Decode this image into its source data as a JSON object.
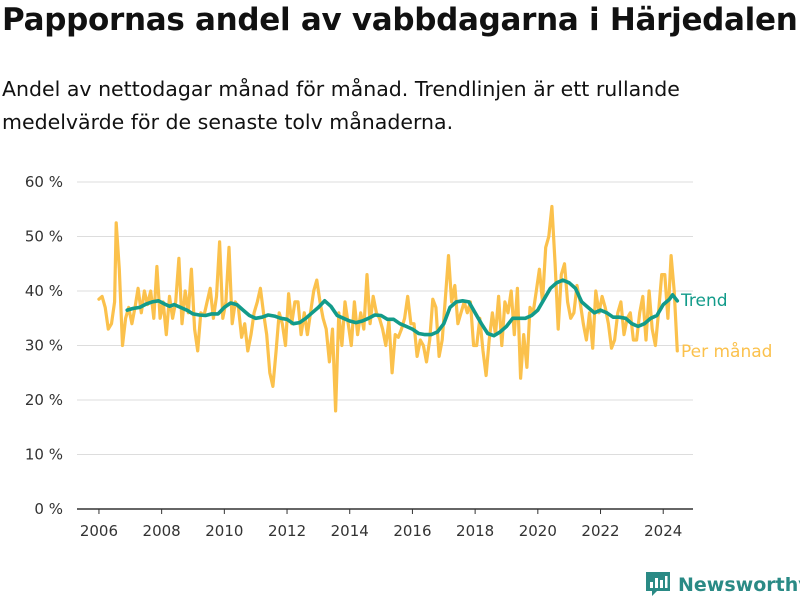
{
  "header": {
    "title": "Pappornas andel av vabbdagarna i Härjedalen",
    "subtitle": "Andel av nettodagar månad för månad. Trendlinjen är ett rullande medelvärde för de senaste tolv månaderna."
  },
  "brand": {
    "name": "Newsworthy",
    "icon": "newsworthy-logo-icon"
  },
  "colors": {
    "per_month": "#fbc14c",
    "trend": "#129b8a",
    "grid": "#dddddd",
    "axis": "#333333"
  },
  "chart_data": {
    "type": "line",
    "title": "Pappornas andel av vabbdagarna i Härjedalen",
    "xlabel": "",
    "ylabel": "",
    "ylim": [
      0,
      60
    ],
    "xlim": [
      2005.3,
      2024.95
    ],
    "grid": true,
    "y_ticks": [
      0,
      10,
      20,
      30,
      40,
      50,
      60
    ],
    "y_tick_labels": [
      "0 %",
      "10 %",
      "20 %",
      "30 %",
      "40 %",
      "50 %",
      "60 %"
    ],
    "x_ticks": [
      2006,
      2008,
      2010,
      2012,
      2014,
      2016,
      2018,
      2020,
      2022,
      2024
    ],
    "x_tick_labels": [
      "2006",
      "2008",
      "2010",
      "2012",
      "2014",
      "2016",
      "2018",
      "2020",
      "2022",
      "2024"
    ],
    "series": [
      {
        "name": "Per månad",
        "legend_label": "Per månad",
        "values": [
          [
            2006.0,
            38.5
          ],
          [
            2006.1,
            39
          ],
          [
            2006.2,
            37
          ],
          [
            2006.3,
            33
          ],
          [
            2006.4,
            34
          ],
          [
            2006.5,
            38
          ],
          [
            2006.55,
            52.5
          ],
          [
            2006.65,
            44
          ],
          [
            2006.75,
            30
          ],
          [
            2006.85,
            35
          ],
          [
            2006.95,
            37
          ],
          [
            2007.05,
            34
          ],
          [
            2007.15,
            37
          ],
          [
            2007.25,
            40.5
          ],
          [
            2007.35,
            36
          ],
          [
            2007.45,
            40
          ],
          [
            2007.55,
            37.5
          ],
          [
            2007.65,
            40
          ],
          [
            2007.75,
            35
          ],
          [
            2007.85,
            44.5
          ],
          [
            2007.95,
            35
          ],
          [
            2008.05,
            38
          ],
          [
            2008.15,
            32
          ],
          [
            2008.25,
            39
          ],
          [
            2008.35,
            35
          ],
          [
            2008.45,
            38
          ],
          [
            2008.55,
            46
          ],
          [
            2008.65,
            34
          ],
          [
            2008.75,
            40
          ],
          [
            2008.85,
            36
          ],
          [
            2008.95,
            44
          ],
          [
            2009.05,
            33
          ],
          [
            2009.15,
            29
          ],
          [
            2009.25,
            36
          ],
          [
            2009.35,
            35.5
          ],
          [
            2009.45,
            38
          ],
          [
            2009.55,
            40.5
          ],
          [
            2009.65,
            35
          ],
          [
            2009.75,
            39
          ],
          [
            2009.85,
            49
          ],
          [
            2009.95,
            35
          ],
          [
            2010.05,
            38
          ],
          [
            2010.15,
            48
          ],
          [
            2010.25,
            34
          ],
          [
            2010.35,
            38
          ],
          [
            2010.45,
            37
          ],
          [
            2010.55,
            31.5
          ],
          [
            2010.65,
            34
          ],
          [
            2010.75,
            29
          ],
          [
            2010.85,
            32
          ],
          [
            2010.95,
            36
          ],
          [
            2011.05,
            38
          ],
          [
            2011.15,
            40.5
          ],
          [
            2011.25,
            36
          ],
          [
            2011.35,
            32
          ],
          [
            2011.45,
            25
          ],
          [
            2011.55,
            22.5
          ],
          [
            2011.65,
            29
          ],
          [
            2011.75,
            36
          ],
          [
            2011.85,
            34
          ],
          [
            2011.95,
            30
          ],
          [
            2012.05,
            39.5
          ],
          [
            2012.15,
            34
          ],
          [
            2012.25,
            38
          ],
          [
            2012.35,
            38
          ],
          [
            2012.45,
            32
          ],
          [
            2012.55,
            36
          ],
          [
            2012.65,
            32
          ],
          [
            2012.75,
            36
          ],
          [
            2012.85,
            40
          ],
          [
            2012.95,
            42
          ],
          [
            2013.05,
            38
          ],
          [
            2013.15,
            35
          ],
          [
            2013.25,
            33
          ],
          [
            2013.35,
            27
          ],
          [
            2013.45,
            33
          ],
          [
            2013.55,
            18
          ],
          [
            2013.65,
            36
          ],
          [
            2013.75,
            30
          ],
          [
            2013.85,
            38
          ],
          [
            2013.95,
            34
          ],
          [
            2014.05,
            30
          ],
          [
            2014.15,
            38
          ],
          [
            2014.25,
            32
          ],
          [
            2014.35,
            36
          ],
          [
            2014.45,
            33
          ],
          [
            2014.55,
            43
          ],
          [
            2014.65,
            34
          ],
          [
            2014.75,
            39
          ],
          [
            2014.85,
            36
          ],
          [
            2014.95,
            35
          ],
          [
            2015.05,
            33
          ],
          [
            2015.15,
            30
          ],
          [
            2015.25,
            34.5
          ],
          [
            2015.35,
            25
          ],
          [
            2015.45,
            32
          ],
          [
            2015.55,
            31.5
          ],
          [
            2015.65,
            33
          ],
          [
            2015.75,
            35
          ],
          [
            2015.85,
            39
          ],
          [
            2015.95,
            34
          ],
          [
            2016.05,
            34
          ],
          [
            2016.15,
            28
          ],
          [
            2016.25,
            31
          ],
          [
            2016.35,
            30
          ],
          [
            2016.45,
            27
          ],
          [
            2016.55,
            31
          ],
          [
            2016.65,
            38.5
          ],
          [
            2016.75,
            37
          ],
          [
            2016.85,
            28
          ],
          [
            2016.95,
            31
          ],
          [
            2017.05,
            38.5
          ],
          [
            2017.15,
            46.5
          ],
          [
            2017.25,
            38
          ],
          [
            2017.35,
            41
          ],
          [
            2017.45,
            34
          ],
          [
            2017.55,
            36
          ],
          [
            2017.65,
            38
          ],
          [
            2017.75,
            36
          ],
          [
            2017.85,
            38
          ],
          [
            2017.95,
            30
          ],
          [
            2018.05,
            30
          ],
          [
            2018.15,
            35
          ],
          [
            2018.25,
            29
          ],
          [
            2018.35,
            24.5
          ],
          [
            2018.45,
            31
          ],
          [
            2018.55,
            36
          ],
          [
            2018.65,
            32
          ],
          [
            2018.75,
            39
          ],
          [
            2018.85,
            30
          ],
          [
            2018.95,
            38
          ],
          [
            2019.05,
            36
          ],
          [
            2019.15,
            40
          ],
          [
            2019.25,
            32
          ],
          [
            2019.35,
            40.5
          ],
          [
            2019.45,
            24
          ],
          [
            2019.55,
            32
          ],
          [
            2019.65,
            26
          ],
          [
            2019.75,
            37
          ],
          [
            2019.85,
            36
          ],
          [
            2019.95,
            40
          ],
          [
            2020.05,
            44
          ],
          [
            2020.15,
            38
          ],
          [
            2020.25,
            48
          ],
          [
            2020.35,
            50
          ],
          [
            2020.45,
            55.5
          ],
          [
            2020.55,
            45
          ],
          [
            2020.65,
            33
          ],
          [
            2020.75,
            43
          ],
          [
            2020.85,
            45
          ],
          [
            2020.95,
            38
          ],
          [
            2021.05,
            35
          ],
          [
            2021.15,
            36
          ],
          [
            2021.25,
            41
          ],
          [
            2021.35,
            38
          ],
          [
            2021.45,
            34
          ],
          [
            2021.55,
            31
          ],
          [
            2021.65,
            36
          ],
          [
            2021.75,
            29.5
          ],
          [
            2021.85,
            40
          ],
          [
            2021.95,
            36
          ],
          [
            2022.05,
            39
          ],
          [
            2022.15,
            37
          ],
          [
            2022.25,
            34
          ],
          [
            2022.35,
            29.5
          ],
          [
            2022.45,
            31
          ],
          [
            2022.55,
            36
          ],
          [
            2022.65,
            38
          ],
          [
            2022.75,
            32
          ],
          [
            2022.85,
            35
          ],
          [
            2022.95,
            36
          ],
          [
            2023.05,
            31
          ],
          [
            2023.15,
            31
          ],
          [
            2023.25,
            36
          ],
          [
            2023.35,
            39
          ],
          [
            2023.45,
            31
          ],
          [
            2023.55,
            40
          ],
          [
            2023.65,
            33
          ],
          [
            2023.75,
            30
          ],
          [
            2023.85,
            36
          ],
          [
            2023.95,
            43
          ],
          [
            2024.05,
            43
          ],
          [
            2024.15,
            35
          ],
          [
            2024.25,
            46.5
          ],
          [
            2024.35,
            40
          ],
          [
            2024.45,
            29
          ]
        ]
      },
      {
        "name": "Trend",
        "legend_label": "Trend",
        "values": [
          [
            2006.9,
            36.5
          ],
          [
            2007.1,
            36.8
          ],
          [
            2007.3,
            37
          ],
          [
            2007.5,
            37.6
          ],
          [
            2007.7,
            38
          ],
          [
            2007.9,
            38.2
          ],
          [
            2008.1,
            37.6
          ],
          [
            2008.25,
            37.2
          ],
          [
            2008.4,
            37.5
          ],
          [
            2008.6,
            37
          ],
          [
            2008.8,
            36.5
          ],
          [
            2009.0,
            35.8
          ],
          [
            2009.2,
            35.6
          ],
          [
            2009.4,
            35.5
          ],
          [
            2009.6,
            35.8
          ],
          [
            2009.8,
            35.8
          ],
          [
            2010.0,
            37
          ],
          [
            2010.2,
            37.8
          ],
          [
            2010.4,
            37.5
          ],
          [
            2010.6,
            36.5
          ],
          [
            2010.8,
            35.5
          ],
          [
            2011.0,
            35
          ],
          [
            2011.2,
            35.2
          ],
          [
            2011.4,
            35.6
          ],
          [
            2011.6,
            35.4
          ],
          [
            2011.8,
            35
          ],
          [
            2012.0,
            34.8
          ],
          [
            2012.2,
            34
          ],
          [
            2012.4,
            34.2
          ],
          [
            2012.6,
            35
          ],
          [
            2012.8,
            36
          ],
          [
            2013.0,
            37
          ],
          [
            2013.2,
            38.2
          ],
          [
            2013.4,
            37.2
          ],
          [
            2013.6,
            35.5
          ],
          [
            2013.8,
            35
          ],
          [
            2014.0,
            34.5
          ],
          [
            2014.2,
            34.2
          ],
          [
            2014.4,
            34.5
          ],
          [
            2014.6,
            35
          ],
          [
            2014.8,
            35.6
          ],
          [
            2015.0,
            35.5
          ],
          [
            2015.2,
            34.8
          ],
          [
            2015.4,
            34.8
          ],
          [
            2015.6,
            34
          ],
          [
            2015.8,
            33.5
          ],
          [
            2016.0,
            33
          ],
          [
            2016.2,
            32.2
          ],
          [
            2016.4,
            32
          ],
          [
            2016.6,
            32
          ],
          [
            2016.8,
            32.5
          ],
          [
            2017.0,
            34
          ],
          [
            2017.2,
            37
          ],
          [
            2017.4,
            38
          ],
          [
            2017.6,
            38.2
          ],
          [
            2017.8,
            38
          ],
          [
            2018.0,
            36
          ],
          [
            2018.2,
            34
          ],
          [
            2018.4,
            32.2
          ],
          [
            2018.6,
            31.8
          ],
          [
            2018.8,
            32.5
          ],
          [
            2019.0,
            33.5
          ],
          [
            2019.2,
            35
          ],
          [
            2019.4,
            35
          ],
          [
            2019.6,
            35
          ],
          [
            2019.8,
            35.5
          ],
          [
            2020.0,
            36.5
          ],
          [
            2020.2,
            38.5
          ],
          [
            2020.4,
            40.5
          ],
          [
            2020.6,
            41.5
          ],
          [
            2020.8,
            42
          ],
          [
            2021.0,
            41.5
          ],
          [
            2021.2,
            40.5
          ],
          [
            2021.4,
            38
          ],
          [
            2021.6,
            37
          ],
          [
            2021.8,
            36
          ],
          [
            2022.0,
            36.5
          ],
          [
            2022.2,
            36
          ],
          [
            2022.4,
            35.2
          ],
          [
            2022.6,
            35.2
          ],
          [
            2022.8,
            35
          ],
          [
            2023.0,
            34
          ],
          [
            2023.2,
            33.5
          ],
          [
            2023.4,
            34
          ],
          [
            2023.6,
            35
          ],
          [
            2023.8,
            35.5
          ],
          [
            2024.0,
            37.5
          ],
          [
            2024.2,
            38.5
          ],
          [
            2024.3,
            39.3
          ],
          [
            2024.45,
            38.2
          ]
        ]
      }
    ]
  }
}
